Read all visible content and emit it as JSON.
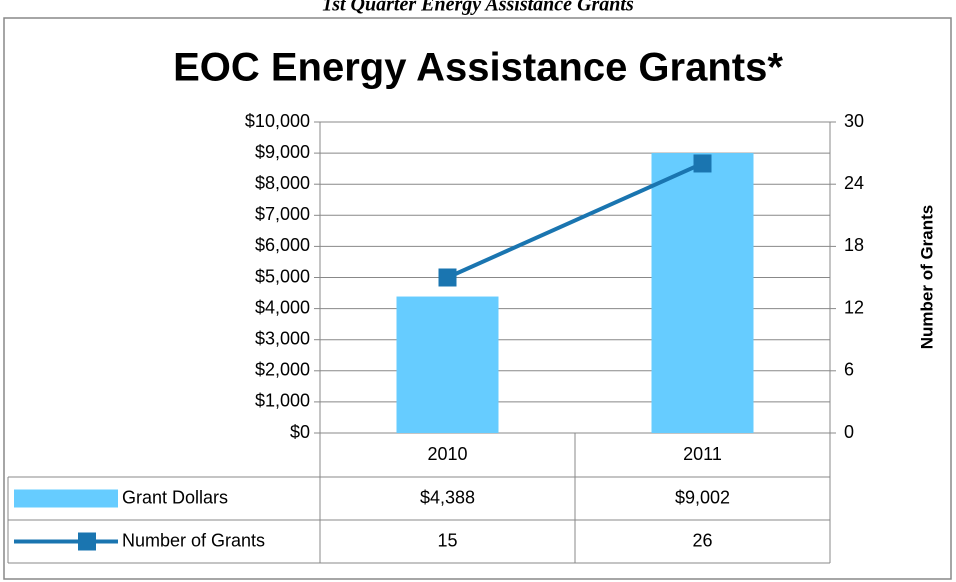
{
  "chart_data": {
    "type": "bar",
    "subtitle": "1st Quarter Energy Assistance Grants",
    "title": "EOC Energy Assistance Grants*",
    "y2_label": "Number of Grants",
    "categories": [
      "2010",
      "2011"
    ],
    "series": [
      {
        "name": "Grant Dollars",
        "type": "bar",
        "color": "#66ccff",
        "values": [
          4388,
          9002
        ],
        "value_labels": [
          "$4,388",
          "$9,002"
        ]
      },
      {
        "name": "Number of Grants",
        "type": "line",
        "axis": "y2",
        "color": "#1a75b0",
        "values": [
          15,
          26
        ]
      }
    ],
    "ylim": [
      0,
      10000
    ],
    "yticks": [
      {
        "value": 0,
        "label": "$0"
      },
      {
        "value": 1000,
        "label": "$1,000"
      },
      {
        "value": 2000,
        "label": "$2,000"
      },
      {
        "value": 3000,
        "label": "$3,000"
      },
      {
        "value": 4000,
        "label": "$4,000"
      },
      {
        "value": 5000,
        "label": "$5,000"
      },
      {
        "value": 6000,
        "label": "$6,000"
      },
      {
        "value": 7000,
        "label": "$7,000"
      },
      {
        "value": 8000,
        "label": "$8,000"
      },
      {
        "value": 9000,
        "label": "$9,000"
      },
      {
        "value": 10000,
        "label": "$10,000"
      }
    ],
    "y2lim": [
      0,
      30
    ],
    "y2ticks": [
      0,
      6,
      12,
      18,
      24,
      30
    ],
    "grid": true
  }
}
